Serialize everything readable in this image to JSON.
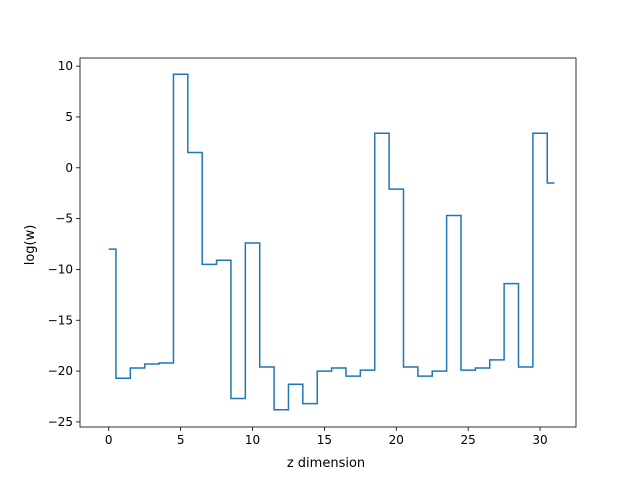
{
  "chart_data": {
    "type": "line",
    "drawstyle": "steps-mid",
    "title": "",
    "xlabel": "z dimension",
    "ylabel": "log(w)",
    "xlim": [
      -2,
      32.5
    ],
    "ylim": [
      -25.5,
      10.8
    ],
    "xticks": [
      0,
      5,
      10,
      15,
      20,
      25,
      30
    ],
    "yticks": [
      -25,
      -20,
      -15,
      -10,
      -5,
      0,
      5,
      10
    ],
    "grid": false,
    "legend": "none",
    "line_color": "#1f77b4",
    "series": [
      {
        "x": [
          0,
          1,
          2,
          3,
          4,
          5,
          6,
          7,
          8,
          9,
          10,
          11,
          12,
          13,
          14,
          15,
          16,
          17,
          18,
          19,
          20,
          21,
          22,
          23,
          24,
          25,
          26,
          27,
          28,
          29,
          30,
          31
        ],
        "values": [
          -8.0,
          -20.7,
          -19.7,
          -19.3,
          -19.2,
          9.2,
          1.5,
          -9.5,
          -9.1,
          -22.7,
          -7.4,
          -19.6,
          -23.8,
          -21.3,
          -23.2,
          -20.0,
          -19.7,
          -20.5,
          -19.9,
          3.4,
          -2.1,
          -19.6,
          -20.5,
          -20.0,
          -4.7,
          -19.9,
          -19.7,
          -18.9,
          -11.4,
          -19.6,
          3.4,
          -1.5
        ]
      }
    ]
  }
}
